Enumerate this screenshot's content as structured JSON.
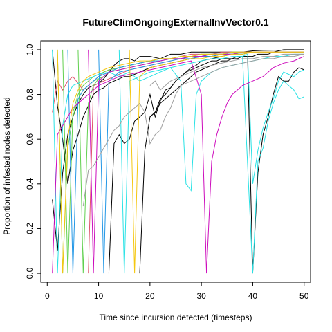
{
  "chart_data": {
    "type": "line",
    "title": "FutureClimOngoingExternalInvVector0.1",
    "xlabel": "Time since incursion detected (timesteps)",
    "ylabel": "Proportion of infested nodes detected",
    "xlim": [
      0,
      50
    ],
    "ylim": [
      0,
      1
    ],
    "x_ticks": [
      "0",
      "10",
      "20",
      "30",
      "40",
      "50"
    ],
    "y_ticks": [
      "0.0",
      "0.2",
      "0.4",
      "0.6",
      "0.8",
      "1.0"
    ],
    "grid": false,
    "legend": "none",
    "series": [
      {
        "color": "#000000",
        "x": [
          1,
          2,
          3,
          4,
          5,
          6,
          7,
          8,
          9,
          10,
          11,
          12,
          13,
          14,
          15,
          16,
          17,
          18,
          19,
          20,
          22,
          24,
          26,
          28,
          30,
          32,
          34,
          36,
          38,
          40,
          42,
          44,
          46,
          48,
          50
        ],
        "y": [
          0.33,
          0.1,
          0.45,
          0.62,
          0.7,
          0.76,
          0.8,
          0.83,
          0.84,
          0.85,
          0.87,
          0.9,
          0.93,
          0.95,
          0.96,
          0.96,
          0.95,
          0.97,
          0.97,
          0.97,
          0.96,
          0.98,
          0.98,
          0.99,
          0.99,
          0.99,
          0.99,
          0.99,
          0.99,
          0.995,
          0.997,
          0.998,
          0.998,
          0.999,
          0.999
        ]
      },
      {
        "color": "#000000",
        "x": [
          1,
          2,
          3,
          4,
          5,
          6,
          7,
          8,
          9,
          10,
          11,
          12,
          13,
          14,
          15,
          16,
          17,
          18,
          19,
          20,
          22,
          24,
          26,
          28,
          30,
          32,
          34,
          36,
          38,
          40,
          42,
          44,
          46,
          48,
          50
        ],
        "y": [
          1,
          0.75,
          0.6,
          0.4,
          0.55,
          0.62,
          0.7,
          0.75,
          0.8,
          0.82,
          0.83,
          0.85,
          0.86,
          0.87,
          0.88,
          0.88,
          0.89,
          0.9,
          0.91,
          0.92,
          0.93,
          0.94,
          0.95,
          0.96,
          0.97,
          0.97,
          0.98,
          0.98,
          0.99,
          0.99,
          0.99,
          0.99,
          1,
          1,
          1
        ]
      },
      {
        "color": "#000000",
        "x": [
          12,
          13,
          14,
          15,
          16,
          17,
          18,
          19,
          20,
          21,
          22,
          23,
          24,
          25,
          26,
          27,
          28,
          29,
          30,
          32,
          34,
          36,
          38,
          40,
          42,
          44,
          46,
          48,
          50
        ],
        "y": [
          0.0,
          0.58,
          0.62,
          0.58,
          0.6,
          0.68,
          0.7,
          0.72,
          0.8,
          0.7,
          0.77,
          0.82,
          0.83,
          0.86,
          0.88,
          0.9,
          0.92,
          0.93,
          0.95,
          0.96,
          0.97,
          0.98,
          0.98,
          0.99,
          0.99,
          0.99,
          0.99,
          0.99,
          0.99
        ]
      },
      {
        "color": "#000000",
        "x": [
          18,
          19,
          20,
          21,
          22,
          23,
          24,
          25,
          26,
          27,
          28,
          29,
          30,
          31,
          32,
          33,
          34,
          35,
          36,
          37,
          38,
          39,
          40,
          41,
          42,
          43,
          44,
          45,
          46,
          47,
          48,
          49,
          50
        ],
        "y": [
          0.0,
          0.55,
          0.7,
          0.72,
          0.78,
          0.8,
          0.83,
          0.86,
          0.88,
          0.9,
          0.91,
          0.92,
          0.93,
          0.94,
          0.95,
          0.95,
          0.96,
          0.96,
          0.96,
          0.97,
          0.97,
          0.97,
          0.0,
          0.45,
          0.62,
          0.7,
          0.8,
          0.88,
          0.86,
          0.86,
          0.9,
          0.92,
          0.91
        ]
      },
      {
        "color": "#000000",
        "x": [
          20,
          21,
          22,
          23,
          24,
          25,
          26,
          27,
          28,
          29,
          30,
          31,
          32,
          33,
          34,
          35,
          36,
          37,
          38,
          39,
          40,
          41,
          42,
          43,
          44,
          45,
          46,
          47,
          48,
          49,
          50
        ],
        "y": [
          0.7,
          0.72,
          0.76,
          0.78,
          0.8,
          0.82,
          0.84,
          0.86,
          0.88,
          0.9,
          0.91,
          0.92,
          0.93,
          0.94,
          0.95,
          0.95,
          0.96,
          0.96,
          0.97,
          0.97,
          0.97,
          0.98,
          0.98,
          0.98,
          0.99,
          0.99,
          0.99,
          0.99,
          0.99,
          0.99,
          0.99
        ]
      },
      {
        "color": "#DF536B",
        "x": [
          1,
          2,
          3,
          4,
          5,
          6,
          7,
          8,
          9,
          10,
          11,
          12,
          14,
          16,
          18,
          20,
          22,
          24,
          26,
          28,
          30,
          32,
          34,
          36,
          38,
          40,
          42,
          44,
          46,
          48,
          50
        ],
        "y": [
          0.72,
          0.86,
          0.82,
          0.86,
          0.88,
          0.85,
          0.82,
          0.84,
          0.86,
          0.88,
          0.9,
          0.91,
          0.92,
          0.93,
          0.94,
          0.95,
          0.96,
          0.96,
          0.97,
          0.98,
          0.98,
          0.98,
          0.99,
          0.99,
          0.99,
          0.99,
          0.99,
          0.99,
          0.99,
          0.99,
          0.99
        ]
      },
      {
        "color": "#DF536B",
        "x": [
          8,
          9,
          10,
          11,
          12,
          13,
          14,
          15,
          16,
          18,
          20,
          22,
          24,
          26,
          28,
          30,
          32,
          34,
          36,
          38,
          40,
          42,
          44,
          46,
          48,
          50
        ],
        "y": [
          0.0,
          0.84,
          0.85,
          0.86,
          0.87,
          0.88,
          0.89,
          0.9,
          0.91,
          0.92,
          0.93,
          0.94,
          0.95,
          0.96,
          0.97,
          0.97,
          0.98,
          0.98,
          0.98,
          0.99,
          0.99,
          0.99,
          0.99,
          0.99,
          0.99,
          0.99
        ]
      },
      {
        "color": "#61D04F",
        "x": [
          2,
          3,
          4,
          5,
          6,
          7,
          8,
          9,
          10,
          11,
          12,
          14,
          16,
          18,
          20,
          22,
          24,
          26,
          28,
          30,
          32,
          34,
          36,
          38,
          40,
          42,
          44,
          46,
          48,
          50
        ],
        "y": [
          1,
          0.0,
          0.56,
          0.7,
          0.78,
          0.82,
          0.84,
          0.86,
          0.87,
          0.88,
          0.9,
          0.92,
          0.93,
          0.94,
          0.95,
          0.96,
          0.96,
          0.97,
          0.97,
          0.98,
          0.98,
          0.98,
          0.99,
          0.99,
          0.99,
          0.99,
          0.99,
          0.99,
          0.99,
          0.99
        ]
      },
      {
        "color": "#61D04F",
        "x": [
          3,
          4,
          5,
          6,
          7,
          8,
          9,
          10,
          11,
          12,
          14,
          16,
          18,
          20,
          22,
          24,
          26,
          28,
          30,
          32,
          34,
          36,
          38,
          40,
          42,
          44,
          46,
          48,
          50
        ],
        "y": [
          1,
          0.0,
          0.72,
          0.8,
          0.84,
          0.86,
          0.88,
          0.89,
          0.9,
          0.91,
          0.92,
          0.93,
          0.94,
          0.95,
          0.95,
          0.96,
          0.97,
          0.97,
          0.98,
          0.98,
          0.98,
          0.99,
          0.99,
          0.99,
          0.99,
          0.99,
          0.99,
          0.99,
          0.99
        ]
      },
      {
        "color": "#61D04F",
        "x": [
          6,
          7,
          8,
          9,
          10,
          11,
          12,
          14,
          16,
          18,
          20,
          22,
          24,
          26,
          28,
          30,
          32,
          34,
          36,
          38,
          40,
          42,
          44,
          46,
          48,
          50
        ],
        "y": [
          1,
          0.0,
          0.76,
          0.84,
          0.87,
          0.88,
          0.9,
          0.91,
          0.92,
          0.93,
          0.94,
          0.95,
          0.96,
          0.96,
          0.97,
          0.97,
          0.98,
          0.98,
          0.98,
          0.99,
          0.99,
          0.99,
          0.99,
          0.99,
          0.99,
          0.99
        ]
      },
      {
        "color": "#2297E6",
        "x": [
          4,
          5,
          6,
          7,
          8,
          9,
          10,
          11,
          12,
          14,
          16,
          18,
          20,
          22,
          24,
          26,
          28,
          30,
          32,
          34,
          36,
          38,
          40,
          42,
          44,
          46,
          48,
          50
        ],
        "y": [
          1,
          0.0,
          0.78,
          0.82,
          0.84,
          0.86,
          0.88,
          0.89,
          0.9,
          0.92,
          0.93,
          0.94,
          0.95,
          0.95,
          0.96,
          0.96,
          0.97,
          0.97,
          0.98,
          0.98,
          0.98,
          0.98,
          0.99,
          0.99,
          0.99,
          0.99,
          0.99,
          0.99
        ]
      },
      {
        "color": "#2297E6",
        "x": [
          10,
          11,
          12,
          13,
          14,
          16,
          18,
          20,
          22,
          24,
          26,
          28,
          30,
          32,
          34,
          36,
          38,
          40,
          42,
          44,
          46,
          48,
          50
        ],
        "y": [
          1,
          0.0,
          0.86,
          0.88,
          0.9,
          0.91,
          0.92,
          0.93,
          0.94,
          0.95,
          0.96,
          0.96,
          0.97,
          0.97,
          0.98,
          0.98,
          0.98,
          0.99,
          0.99,
          0.99,
          0.99,
          0.99,
          0.99
        ]
      },
      {
        "color": "#28E2E5",
        "x": [
          1,
          2,
          3,
          4,
          5,
          6,
          7,
          8,
          9,
          10,
          12,
          14,
          16,
          18,
          20,
          22,
          24,
          26,
          27,
          28,
          29,
          30,
          32,
          34,
          36,
          38,
          40,
          42,
          44,
          46,
          48,
          50
        ],
        "y": [
          1,
          0.0,
          0.66,
          0.8,
          0.84,
          0.85,
          0.86,
          0.87,
          0.88,
          0.89,
          0.9,
          0.88,
          0.9,
          0.86,
          0.88,
          0.9,
          0.92,
          0.86,
          0.4,
          0.37,
          0.8,
          0.86,
          0.9,
          0.92,
          0.93,
          0.94,
          0.95,
          0.96,
          0.97,
          0.97,
          0.98,
          0.98
        ]
      },
      {
        "color": "#28E2E5",
        "x": [
          14,
          15,
          16,
          18,
          20,
          22,
          24,
          26,
          28,
          30,
          32,
          34,
          36,
          38,
          40,
          41,
          42,
          43,
          44,
          45,
          46,
          47,
          48,
          49,
          50
        ],
        "y": [
          1,
          0.0,
          0.86,
          0.88,
          0.9,
          0.91,
          0.92,
          0.93,
          0.94,
          0.95,
          0.96,
          0.96,
          0.97,
          0.97,
          0.0,
          0.5,
          0.56,
          0.68,
          0.76,
          0.82,
          0.86,
          0.84,
          0.82,
          0.78,
          0.79
        ]
      },
      {
        "color": "#28E2E5",
        "x": [
          38,
          39,
          40,
          41,
          42,
          43,
          44,
          45,
          46,
          47,
          48,
          49,
          50
        ],
        "y": [
          0.97,
          0.98,
          0.4,
          0.55,
          0.65,
          0.72,
          0.78,
          0.86,
          0.9,
          0.89,
          0.88,
          0.9,
          0.91
        ]
      },
      {
        "color": "#CD0BBC",
        "x": [
          1,
          2,
          3,
          4,
          5,
          6,
          7,
          8,
          9,
          10,
          11,
          12,
          14,
          16,
          18,
          20,
          22,
          24,
          26,
          28,
          30,
          31,
          32,
          33,
          34,
          35,
          36,
          38,
          40,
          42,
          44,
          46,
          48,
          50
        ],
        "y": [
          0.0,
          0.62,
          0.66,
          0.7,
          0.74,
          0.76,
          0.78,
          0.8,
          0.82,
          0.84,
          0.85,
          0.86,
          0.88,
          0.89,
          0.9,
          0.91,
          0.92,
          0.93,
          0.94,
          0.95,
          0.8,
          0.0,
          0.5,
          0.62,
          0.7,
          0.76,
          0.8,
          0.84,
          0.86,
          0.88,
          0.92,
          0.94,
          0.95,
          0.97
        ]
      },
      {
        "color": "#CD0BBC",
        "x": [
          8,
          9,
          10,
          11,
          12,
          14,
          16,
          18,
          20,
          22,
          24,
          26,
          28,
          30,
          32,
          34,
          36,
          38,
          40,
          42,
          44,
          46,
          48,
          50
        ],
        "y": [
          1,
          0.0,
          0.86,
          0.88,
          0.9,
          0.91,
          0.92,
          0.93,
          0.94,
          0.95,
          0.96,
          0.96,
          0.97,
          0.97,
          0.98,
          0.98,
          0.98,
          0.99,
          0.99,
          0.99,
          0.99,
          0.99,
          0.99,
          0.99
        ]
      },
      {
        "color": "#F5C710",
        "x": [
          2,
          3,
          4,
          5,
          6,
          7,
          8,
          9,
          10,
          11,
          12,
          14,
          16,
          18,
          20,
          22,
          24,
          26,
          28,
          30,
          32,
          34,
          36,
          38,
          40,
          42,
          44,
          46,
          48,
          50
        ],
        "y": [
          1,
          0.0,
          0.6,
          0.76,
          0.82,
          0.86,
          0.88,
          0.89,
          0.9,
          0.91,
          0.92,
          0.93,
          0.94,
          0.95,
          0.95,
          0.96,
          0.96,
          0.97,
          0.97,
          0.98,
          0.98,
          0.98,
          0.99,
          0.99,
          0.99,
          0.99,
          0.99,
          0.99,
          0.99,
          0.99
        ]
      },
      {
        "color": "#F5C710",
        "x": [
          16,
          17,
          18,
          19,
          20,
          22,
          24,
          26,
          28,
          30,
          32,
          34,
          36,
          38,
          40,
          42,
          44,
          46,
          48,
          50
        ],
        "y": [
          1,
          0.0,
          0.88,
          0.9,
          0.92,
          0.93,
          0.94,
          0.95,
          0.96,
          0.96,
          0.97,
          0.97,
          0.98,
          0.98,
          0.99,
          0.99,
          0.99,
          0.99,
          0.99,
          0.99
        ]
      },
      {
        "color": "#9E9E9E",
        "x": [
          7,
          8,
          9,
          10,
          11,
          12,
          13,
          14,
          15,
          16,
          17,
          18,
          19,
          20,
          21,
          22,
          23,
          24,
          25,
          26,
          28,
          30,
          32,
          34,
          36,
          38,
          40,
          42,
          44,
          46,
          48,
          50
        ],
        "y": [
          0.3,
          0.46,
          0.48,
          0.52,
          0.56,
          0.6,
          0.64,
          0.66,
          0.7,
          0.72,
          0.74,
          0.76,
          0.72,
          0.58,
          0.62,
          0.64,
          0.7,
          0.74,
          0.8,
          0.84,
          0.86,
          0.88,
          0.9,
          0.92,
          0.93,
          0.94,
          0.95,
          0.96,
          0.96,
          0.97,
          0.97,
          0.98
        ]
      },
      {
        "color": "#9E9E9E",
        "x": [
          20,
          21,
          22,
          23,
          24,
          25,
          26,
          28,
          30,
          32,
          34,
          36,
          38,
          40,
          42,
          44,
          46,
          48,
          50
        ],
        "y": [
          0.84,
          0.86,
          0.82,
          0.84,
          0.86,
          0.87,
          0.88,
          0.9,
          0.92,
          0.93,
          0.94,
          0.95,
          0.96,
          0.96,
          0.97,
          0.97,
          0.98,
          0.98,
          0.98
        ]
      }
    ]
  }
}
